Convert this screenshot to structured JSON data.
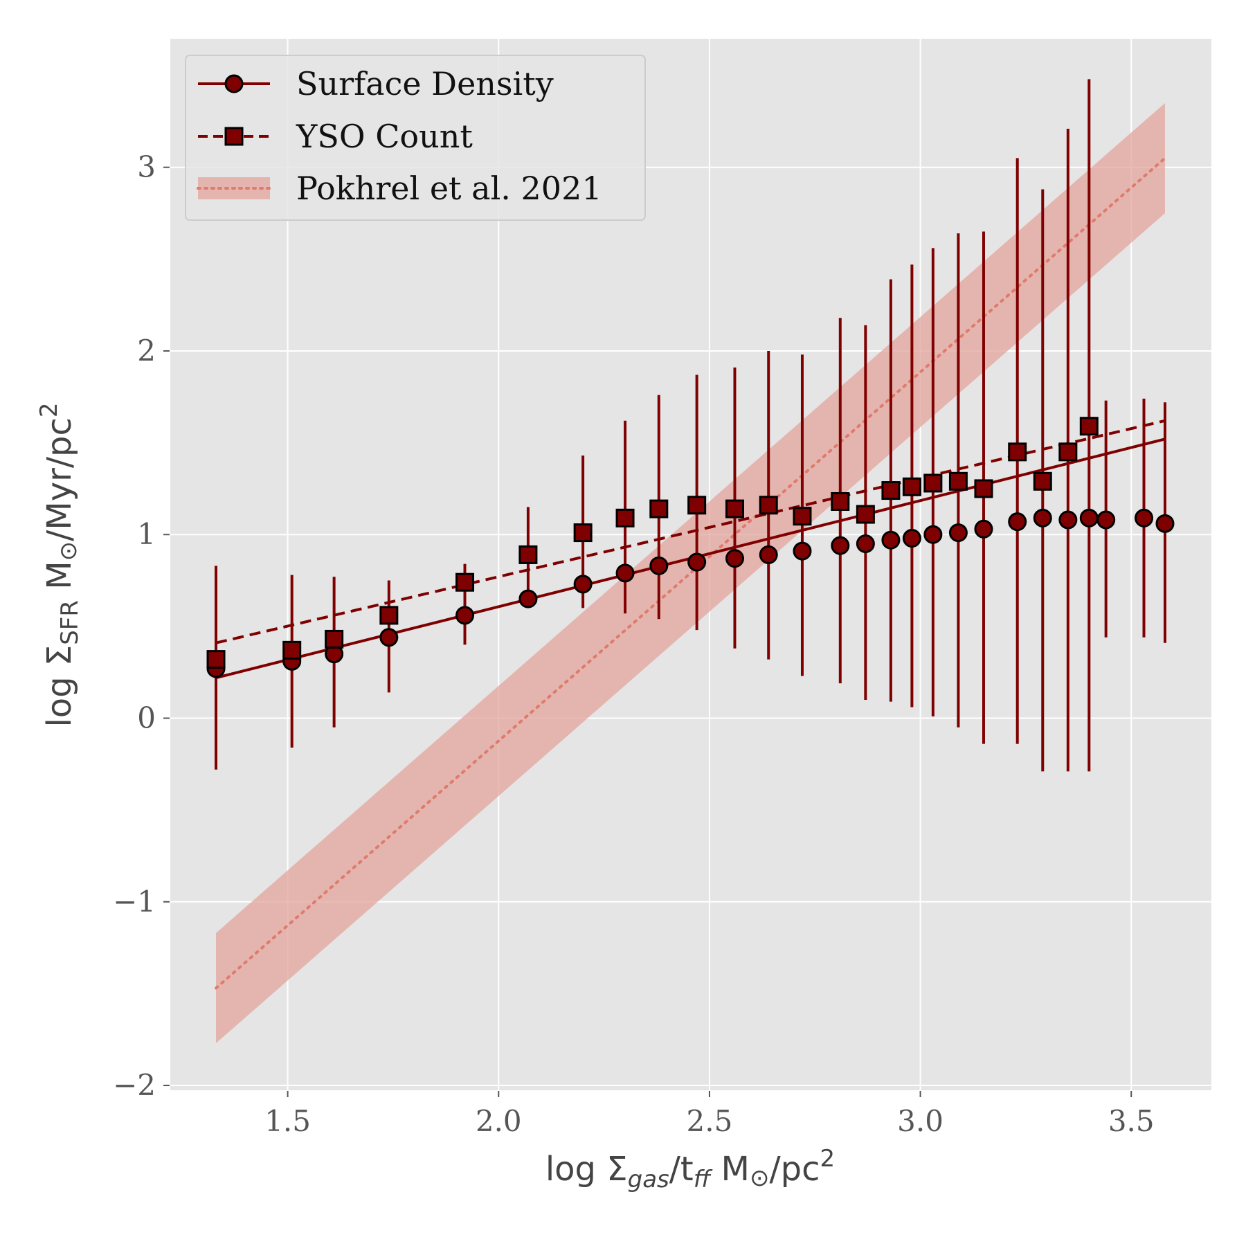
{
  "chart_data": {
    "type": "scatter",
    "title": "",
    "xlabel": {
      "main": "log Σ",
      "sub": "gas",
      "sep": "/t",
      "sub2": "ff",
      "unit": " M",
      "odot": "⊙",
      "unit2": "/pc",
      "sup": "2"
    },
    "ylabel": {
      "main": "log Σ",
      "sub": "SFR",
      "unit": " M",
      "odot": "⊙",
      "unit2": "/Myr/pc",
      "sup": "2"
    },
    "xlim": [
      1.22,
      3.69
    ],
    "ylim": [
      -2.03,
      3.7
    ],
    "xticks": [
      1.5,
      2.0,
      2.5,
      3.0,
      3.5
    ],
    "xtick_labels": [
      "1.5",
      "2.0",
      "2.5",
      "3.0",
      "3.5"
    ],
    "yticks": [
      -2,
      -1,
      0,
      1,
      2,
      3
    ],
    "ytick_labels": [
      "−2",
      "−1",
      "0",
      "1",
      "2",
      "3"
    ],
    "grid": true,
    "legend_position": "top-left",
    "background": "#e5e5e5",
    "colors": {
      "series": "#7f0000",
      "band": "#e3a49c",
      "band_line": "#e07a6c"
    },
    "series": [
      {
        "name": "Surface Density",
        "marker": "circle",
        "line_style": "solid",
        "fit_line": {
          "x": [
            1.33,
            3.58
          ],
          "y": [
            0.22,
            1.52
          ]
        },
        "x": [
          1.33,
          1.51,
          1.61,
          1.74,
          1.92,
          2.07,
          2.2,
          2.3,
          2.38,
          2.47,
          2.56,
          2.64,
          2.72,
          2.81,
          2.87,
          2.93,
          2.98,
          3.03,
          3.09,
          3.15,
          3.23,
          3.29,
          3.35,
          3.4,
          3.44,
          3.53,
          3.58
        ],
        "y": [
          0.27,
          0.31,
          0.35,
          0.44,
          0.56,
          0.65,
          0.73,
          0.79,
          0.83,
          0.85,
          0.87,
          0.89,
          0.91,
          0.94,
          0.95,
          0.97,
          0.98,
          1.0,
          1.01,
          1.03,
          1.07,
          1.09,
          1.08,
          1.09,
          1.08,
          1.09,
          1.06
        ]
      },
      {
        "name": "YSO Count",
        "marker": "square",
        "line_style": "dashed",
        "fit_line": {
          "x": [
            1.33,
            3.58
          ],
          "y": [
            0.41,
            1.62
          ]
        },
        "x": [
          1.33,
          1.51,
          1.61,
          1.74,
          1.92,
          2.07,
          2.2,
          2.3,
          2.38,
          2.47,
          2.56,
          2.64,
          2.72,
          2.81,
          2.87,
          2.93,
          2.98,
          3.03,
          3.09,
          3.15,
          3.23,
          3.29,
          3.35,
          3.4
        ],
        "y": [
          0.32,
          0.37,
          0.43,
          0.56,
          0.74,
          0.89,
          1.01,
          1.09,
          1.14,
          1.16,
          1.14,
          1.16,
          1.1,
          1.18,
          1.11,
          1.24,
          1.26,
          1.28,
          1.29,
          1.25,
          1.45,
          1.29,
          1.45,
          1.59
        ],
        "yerr_low": [
          -0.28,
          -0.16,
          -0.05,
          0.14,
          0.4,
          0.65,
          0.6,
          0.57,
          0.54,
          0.48,
          0.38,
          0.32,
          0.23,
          0.19,
          0.1,
          0.09,
          0.06,
          0.01,
          -0.05,
          -0.14,
          -0.14,
          -0.29,
          -0.29,
          -0.29
        ],
        "yerr_high": [
          0.83,
          0.78,
          0.77,
          0.75,
          0.84,
          1.15,
          1.43,
          1.62,
          1.76,
          1.87,
          1.91,
          2.0,
          1.98,
          2.18,
          2.14,
          2.39,
          2.47,
          2.56,
          2.64,
          2.65,
          3.05,
          2.88,
          3.21,
          3.48
        ]
      },
      {
        "name": "Pokhrel et al. 2021",
        "marker": "none",
        "line_style": "dotted",
        "x": [
          1.33,
          3.58
        ],
        "y": [
          -1.47,
          3.05
        ],
        "band_low": [
          -1.77,
          2.75
        ],
        "band_high": [
          -1.17,
          3.35
        ]
      }
    ],
    "extra_errorbars": [
      {
        "x": 3.44,
        "low": 0.44,
        "high": 1.73
      },
      {
        "x": 3.53,
        "low": 0.44,
        "high": 1.74
      },
      {
        "x": 3.58,
        "low": 0.41,
        "high": 1.72
      }
    ]
  }
}
